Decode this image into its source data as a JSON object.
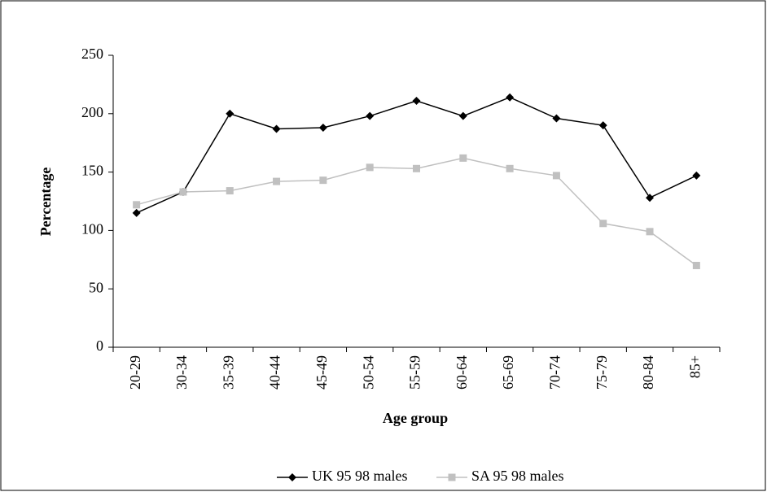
{
  "chart_data": {
    "type": "line",
    "categories": [
      "20-29",
      "30-34",
      "35-39",
      "40-44",
      "45-49",
      "50-54",
      "55-59",
      "60-64",
      "65-69",
      "70-74",
      "75-79",
      "80-84",
      "85+"
    ],
    "series": [
      {
        "name": "UK 95 98 males",
        "color": "#000000",
        "marker": "diamond",
        "values": [
          115,
          133,
          200,
          187,
          188,
          198,
          211,
          198,
          214,
          196,
          190,
          128,
          147
        ]
      },
      {
        "name": "SA 95 98 males",
        "color": "#c0c0c0",
        "marker": "square",
        "values": [
          122,
          133,
          134,
          142,
          143,
          154,
          153,
          162,
          153,
          147,
          106,
          99,
          70
        ]
      }
    ],
    "ylim": [
      0,
      250
    ],
    "yticks": [
      0,
      50,
      100,
      150,
      200,
      250
    ],
    "xlabel": "Age group",
    "ylabel": "Percentage",
    "legend": "bottom",
    "grid": false
  }
}
